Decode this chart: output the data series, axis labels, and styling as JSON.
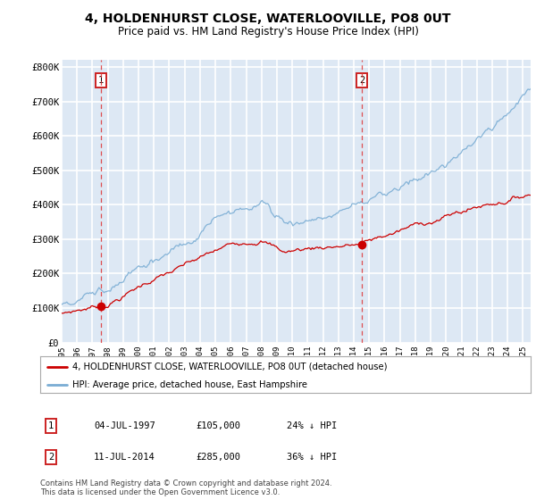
{
  "title": "4, HOLDENHURST CLOSE, WATERLOOVILLE, PO8 0UT",
  "subtitle": "Price paid vs. HM Land Registry's House Price Index (HPI)",
  "ylabel_ticks": [
    "£0",
    "£100K",
    "£200K",
    "£300K",
    "£400K",
    "£500K",
    "£600K",
    "£700K",
    "£800K"
  ],
  "ytick_values": [
    0,
    100000,
    200000,
    300000,
    400000,
    500000,
    600000,
    700000,
    800000
  ],
  "ylim": [
    0,
    820000
  ],
  "sale1_x": 1997.54,
  "sale1_price": 105000,
  "sale1_label": "04-JUL-1997",
  "sale1_pct": "24% ↓ HPI",
  "sale2_x": 2014.54,
  "sale2_price": 285000,
  "sale2_label": "11-JUL-2014",
  "sale2_pct": "36% ↓ HPI",
  "red_color": "#cc0000",
  "blue_color": "#7aadd4",
  "dashed_color": "#dd3333",
  "legend_label_red": "4, HOLDENHURST CLOSE, WATERLOOVILLE, PO8 0UT (detached house)",
  "legend_label_blue": "HPI: Average price, detached house, East Hampshire",
  "footnote1": "Contains HM Land Registry data © Crown copyright and database right 2024.",
  "footnote2": "This data is licensed under the Open Government Licence v3.0.",
  "plot_bg_color": "#dde8f4",
  "grid_color": "#ffffff",
  "title_fontsize": 10,
  "subtitle_fontsize": 8.5
}
